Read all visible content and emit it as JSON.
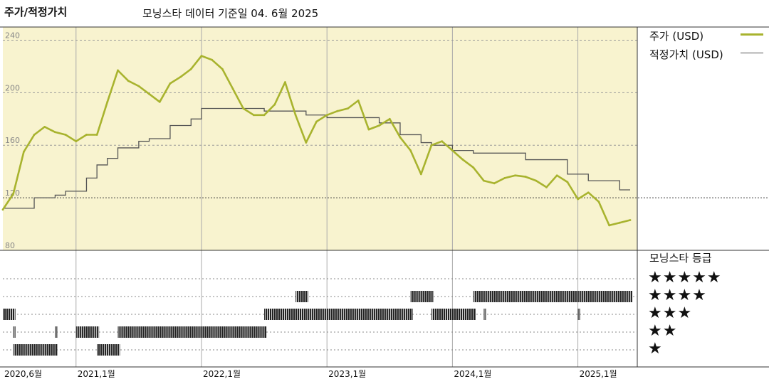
{
  "header": {
    "title": "주가/적정가치",
    "subtitle": "모닝스타 데이터 기준일 04. 6월 2025"
  },
  "legend": {
    "price_label": "주가 (USD)",
    "fair_label": "적정가치 (USD)",
    "rating_title": "모닝스타 등급"
  },
  "ratings": [
    "★★★★★",
    "★★★★",
    "★★★",
    "★★",
    "★"
  ],
  "colors": {
    "price": "#a8b32e",
    "fair": "#555555",
    "upper_bg": "#f8f3cf",
    "bar": "#222222"
  },
  "chart_data": [
    {
      "type": "line",
      "title": "주가/적정가치",
      "ylim": [
        80,
        250
      ],
      "yticks": [
        "240",
        "200",
        "160",
        "120",
        "80"
      ],
      "x_range": [
        "2020-06",
        "2025-06"
      ],
      "xticks": [
        "2020,6월",
        "2021,1월",
        "2022,1월",
        "2023,1월",
        "2024,1월",
        "2025,1월"
      ],
      "series": [
        {
          "name": "주가 (USD)",
          "points": [
            [
              "2020-06",
              111
            ],
            [
              "2020-07",
              123
            ],
            [
              "2020-08",
              155
            ],
            [
              "2020-09",
              168
            ],
            [
              "2020-10",
              174
            ],
            [
              "2020-11",
              170
            ],
            [
              "2020-12",
              168
            ],
            [
              "2021-01",
              163
            ],
            [
              "2021-02",
              168
            ],
            [
              "2021-03",
              168
            ],
            [
              "2021-04",
              193
            ],
            [
              "2021-05",
              217
            ],
            [
              "2021-06",
              209
            ],
            [
              "2021-07",
              205
            ],
            [
              "2021-08",
              199
            ],
            [
              "2021-09",
              193
            ],
            [
              "2021-10",
              207
            ],
            [
              "2021-11",
              212
            ],
            [
              "2021-12",
              218
            ],
            [
              "2022-01",
              228
            ],
            [
              "2022-02",
              225
            ],
            [
              "2022-03",
              218
            ],
            [
              "2022-04",
              203
            ],
            [
              "2022-05",
              188
            ],
            [
              "2022-06",
              183
            ],
            [
              "2022-07",
              183
            ],
            [
              "2022-08",
              191
            ],
            [
              "2022-09",
              208
            ],
            [
              "2022-10",
              183
            ],
            [
              "2022-11",
              162
            ],
            [
              "2022-12",
              178
            ],
            [
              "2023-01",
              183
            ],
            [
              "2023-02",
              186
            ],
            [
              "2023-03",
              188
            ],
            [
              "2023-04",
              194
            ],
            [
              "2023-05",
              172
            ],
            [
              "2023-06",
              175
            ],
            [
              "2023-07",
              180
            ],
            [
              "2023-08",
              166
            ],
            [
              "2023-09",
              156
            ],
            [
              "2023-10",
              138
            ],
            [
              "2023-11",
              160
            ],
            [
              "2023-12",
              163
            ],
            [
              "2024-01",
              156
            ],
            [
              "2024-02",
              149
            ],
            [
              "2024-03",
              143
            ],
            [
              "2024-04",
              133
            ],
            [
              "2024-05",
              131
            ],
            [
              "2024-06",
              135
            ],
            [
              "2024-07",
              137
            ],
            [
              "2024-08",
              136
            ],
            [
              "2024-09",
              133
            ],
            [
              "2024-10",
              128
            ],
            [
              "2024-11",
              137
            ],
            [
              "2024-12",
              132
            ],
            [
              "2025-01",
              119
            ],
            [
              "2025-02",
              124
            ],
            [
              "2025-03",
              117
            ],
            [
              "2025-04",
              99
            ],
            [
              "2025-05",
              101
            ],
            [
              "2025-06",
              103
            ]
          ]
        },
        {
          "name": "적정가치 (USD)",
          "points": [
            [
              "2020-06",
              112
            ],
            [
              "2020-09",
              120
            ],
            [
              "2020-11",
              122
            ],
            [
              "2020-12",
              125
            ],
            [
              "2021-02",
              135
            ],
            [
              "2021-03",
              145
            ],
            [
              "2021-04",
              150
            ],
            [
              "2021-05",
              158
            ],
            [
              "2021-07",
              163
            ],
            [
              "2021-08",
              165
            ],
            [
              "2021-10",
              175
            ],
            [
              "2021-12",
              180
            ],
            [
              "2022-01",
              188
            ],
            [
              "2022-07",
              186
            ],
            [
              "2022-11",
              183
            ],
            [
              "2023-01",
              181
            ],
            [
              "2023-06",
              177
            ],
            [
              "2023-08",
              168
            ],
            [
              "2023-10",
              162
            ],
            [
              "2023-11",
              160
            ],
            [
              "2024-01",
              156
            ],
            [
              "2024-03",
              154
            ],
            [
              "2024-08",
              149
            ],
            [
              "2024-12",
              138
            ],
            [
              "2025-02",
              133
            ],
            [
              "2025-05",
              126
            ],
            [
              "2025-06",
              126
            ]
          ]
        }
      ]
    },
    {
      "type": "bar",
      "title": "모닝스타 등급",
      "rating_segments": [
        {
          "stars": 4,
          "from": "2022-10",
          "to": "2022-11"
        },
        {
          "stars": 4,
          "from": "2023-09",
          "to": "2023-11"
        },
        {
          "stars": 4,
          "from": "2024-03",
          "to": "2025-06"
        },
        {
          "stars": 3,
          "from": "2020-06",
          "to": "2020-07"
        },
        {
          "stars": 3,
          "from": "2022-07",
          "to": "2022-11"
        },
        {
          "stars": 3,
          "from": "2022-11",
          "to": "2023-09"
        },
        {
          "stars": 3,
          "from": "2023-11",
          "to": "2024-03"
        },
        {
          "stars": 3,
          "from": "2024-04",
          "to": "2024-04"
        },
        {
          "stars": 3,
          "from": "2025-01",
          "to": "2025-01"
        },
        {
          "stars": 2,
          "from": "2020-07",
          "to": "2020-07"
        },
        {
          "stars": 2,
          "from": "2020-11",
          "to": "2020-11"
        },
        {
          "stars": 2,
          "from": "2021-01",
          "to": "2021-03"
        },
        {
          "stars": 2,
          "from": "2021-05",
          "to": "2022-07"
        },
        {
          "stars": 1,
          "from": "2020-07",
          "to": "2020-11"
        },
        {
          "stars": 1,
          "from": "2021-03",
          "to": "2021-05"
        }
      ]
    }
  ]
}
